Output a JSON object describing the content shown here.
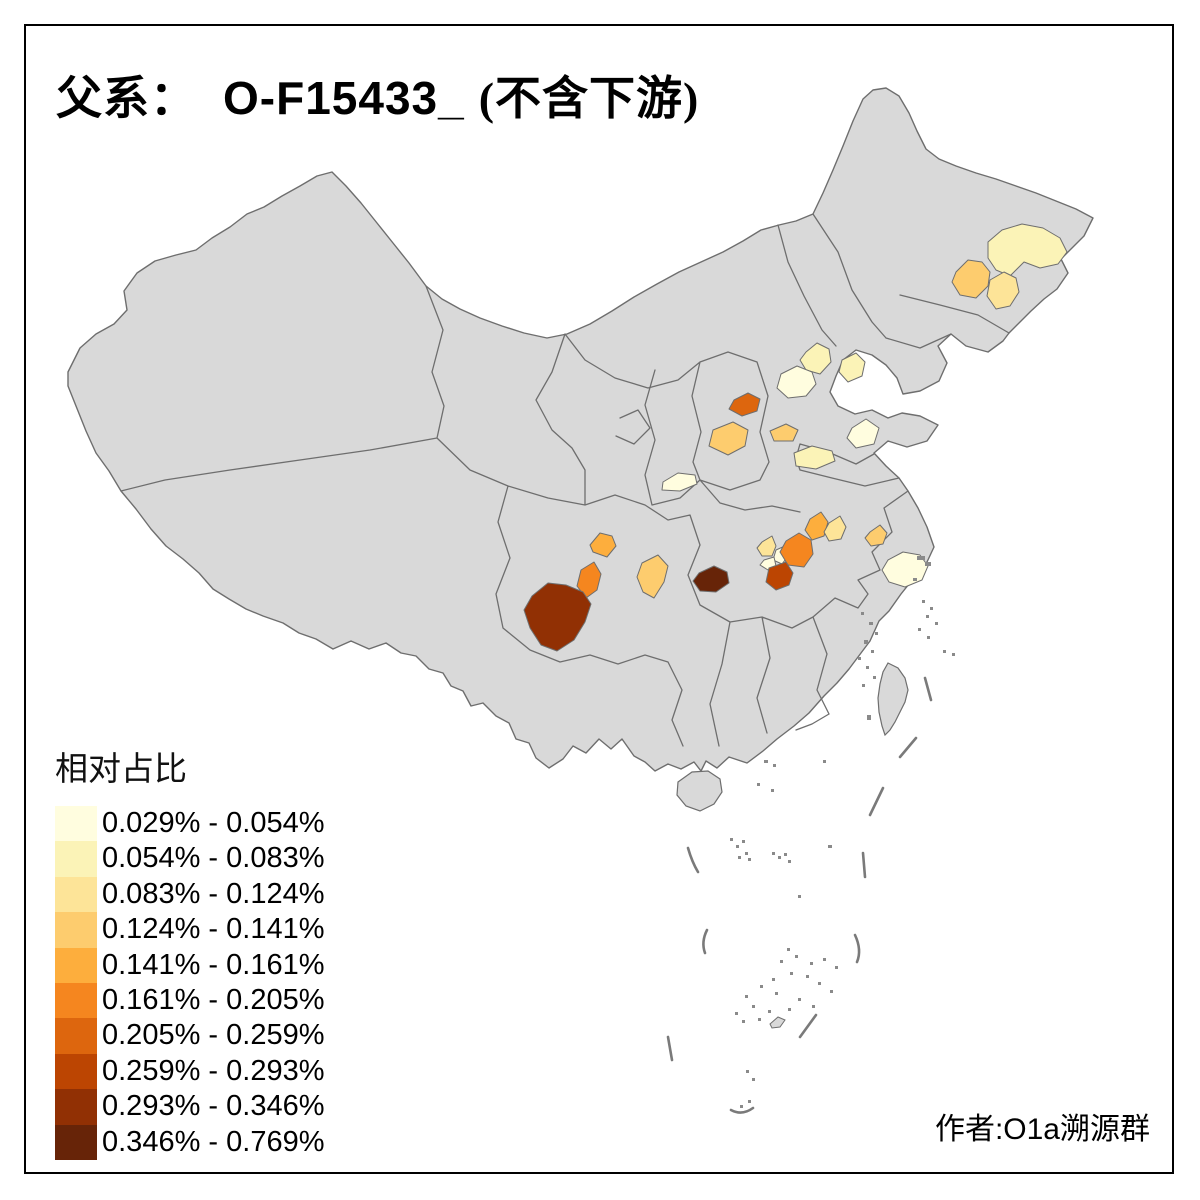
{
  "header": {
    "prefix": "父系：",
    "code": "O-F15433_",
    "suffix": "(不含下游)"
  },
  "legend": {
    "title": "相对占比",
    "classes": [
      {
        "label": "0.029% - 0.054%",
        "color": "#FFFDDF"
      },
      {
        "label": "0.054% - 0.083%",
        "color": "#FBF3B7"
      },
      {
        "label": "0.083% - 0.124%",
        "color": "#FDE498"
      },
      {
        "label": "0.124% - 0.141%",
        "color": "#FDCC6E"
      },
      {
        "label": "0.141% - 0.161%",
        "color": "#FDAE3D"
      },
      {
        "label": "0.161% - 0.205%",
        "color": "#F5861F"
      },
      {
        "label": "0.205% - 0.259%",
        "color": "#DD660E"
      },
      {
        "label": "0.259% - 0.293%",
        "color": "#BC4502"
      },
      {
        "label": "0.293% - 0.346%",
        "color": "#913004"
      },
      {
        "label": "0.346% - 0.769%",
        "color": "#672408"
      }
    ]
  },
  "attribution": "作者:O1a溯源群",
  "map": {
    "base_fill": "#d9d9d9",
    "border_color": "#6e6e6e",
    "frame_color": "#000000",
    "regions": {
      "r01": 2,
      "r02": 4,
      "r03": 3,
      "r04": 2,
      "r05": 2,
      "r06": 1,
      "r07": 7,
      "r08": 4,
      "r09": 4,
      "r10": 2,
      "r11": 1,
      "r12": 1,
      "r13": 5,
      "r14": 3,
      "r15": 3,
      "r16": 1,
      "r17": 1,
      "r18": 6,
      "r19": 8,
      "r20": 10,
      "r21": 4,
      "r22": 1,
      "r23": 5,
      "r24": 6,
      "r25": 9,
      "r26": 4
    }
  }
}
